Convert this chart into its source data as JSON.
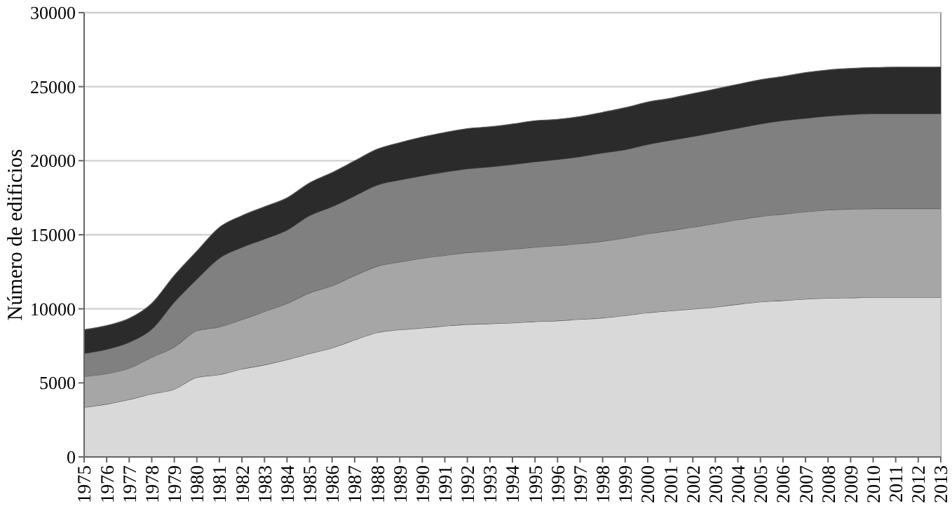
{
  "chart_data": {
    "type": "area",
    "stacked": true,
    "ylabel": "Número de edificios",
    "categories": [
      "1975",
      "1976",
      "1977",
      "1978",
      "1979",
      "1980",
      "1981",
      "1982",
      "1983",
      "1984",
      "1985",
      "1986",
      "1987",
      "1988",
      "1989",
      "1990",
      "1991",
      "1992",
      "1993",
      "1994",
      "1995",
      "1996",
      "1997",
      "1998",
      "1999",
      "2000",
      "2001",
      "2002",
      "2003",
      "2004",
      "2005",
      "2006",
      "2007",
      "2008",
      "2009",
      "2010",
      "2011",
      "2012",
      "2013"
    ],
    "ylim": [
      0,
      30000
    ],
    "yticks": [
      0,
      5000,
      10000,
      15000,
      20000,
      25000,
      30000
    ],
    "grid": "y",
    "series": [
      {
        "color": "#d9d9d9",
        "values": [
          3350,
          3570,
          3880,
          4260,
          4580,
          5370,
          5560,
          5940,
          6220,
          6570,
          6980,
          7360,
          7900,
          8400,
          8590,
          8710,
          8840,
          8950,
          9000,
          9050,
          9140,
          9200,
          9300,
          9390,
          9550,
          9740,
          9870,
          9990,
          10120,
          10310,
          10470,
          10560,
          10660,
          10720,
          10750,
          10780,
          10780,
          10780,
          10780
        ]
      },
      {
        "color": "#a6a6a6",
        "values": [
          2080,
          2050,
          2120,
          2470,
          2840,
          3160,
          3220,
          3340,
          3600,
          3790,
          4100,
          4200,
          4350,
          4480,
          4580,
          4710,
          4770,
          4850,
          4900,
          4980,
          5020,
          5080,
          5110,
          5180,
          5240,
          5330,
          5420,
          5520,
          5640,
          5710,
          5770,
          5830,
          5890,
          5960,
          5990,
          5990,
          5990,
          5990,
          5990
        ]
      },
      {
        "color": "#808080",
        "values": [
          1550,
          1640,
          1740,
          1890,
          3030,
          3470,
          4640,
          4870,
          4890,
          4950,
          5210,
          5330,
          5370,
          5470,
          5520,
          5560,
          5620,
          5650,
          5680,
          5710,
          5760,
          5800,
          5860,
          5950,
          5950,
          6020,
          6080,
          6120,
          6150,
          6170,
          6240,
          6310,
          6310,
          6330,
          6370,
          6400,
          6400,
          6400,
          6400
        ]
      },
      {
        "color": "#2b2b2b",
        "values": [
          1610,
          1610,
          1610,
          1740,
          1800,
          1890,
          2080,
          2140,
          2180,
          2180,
          2210,
          2310,
          2370,
          2430,
          2530,
          2620,
          2680,
          2720,
          2710,
          2740,
          2780,
          2710,
          2710,
          2750,
          2840,
          2870,
          2840,
          2900,
          2930,
          2970,
          2990,
          2990,
          3090,
          3120,
          3120,
          3120,
          3150,
          3150,
          3150
        ]
      }
    ]
  }
}
